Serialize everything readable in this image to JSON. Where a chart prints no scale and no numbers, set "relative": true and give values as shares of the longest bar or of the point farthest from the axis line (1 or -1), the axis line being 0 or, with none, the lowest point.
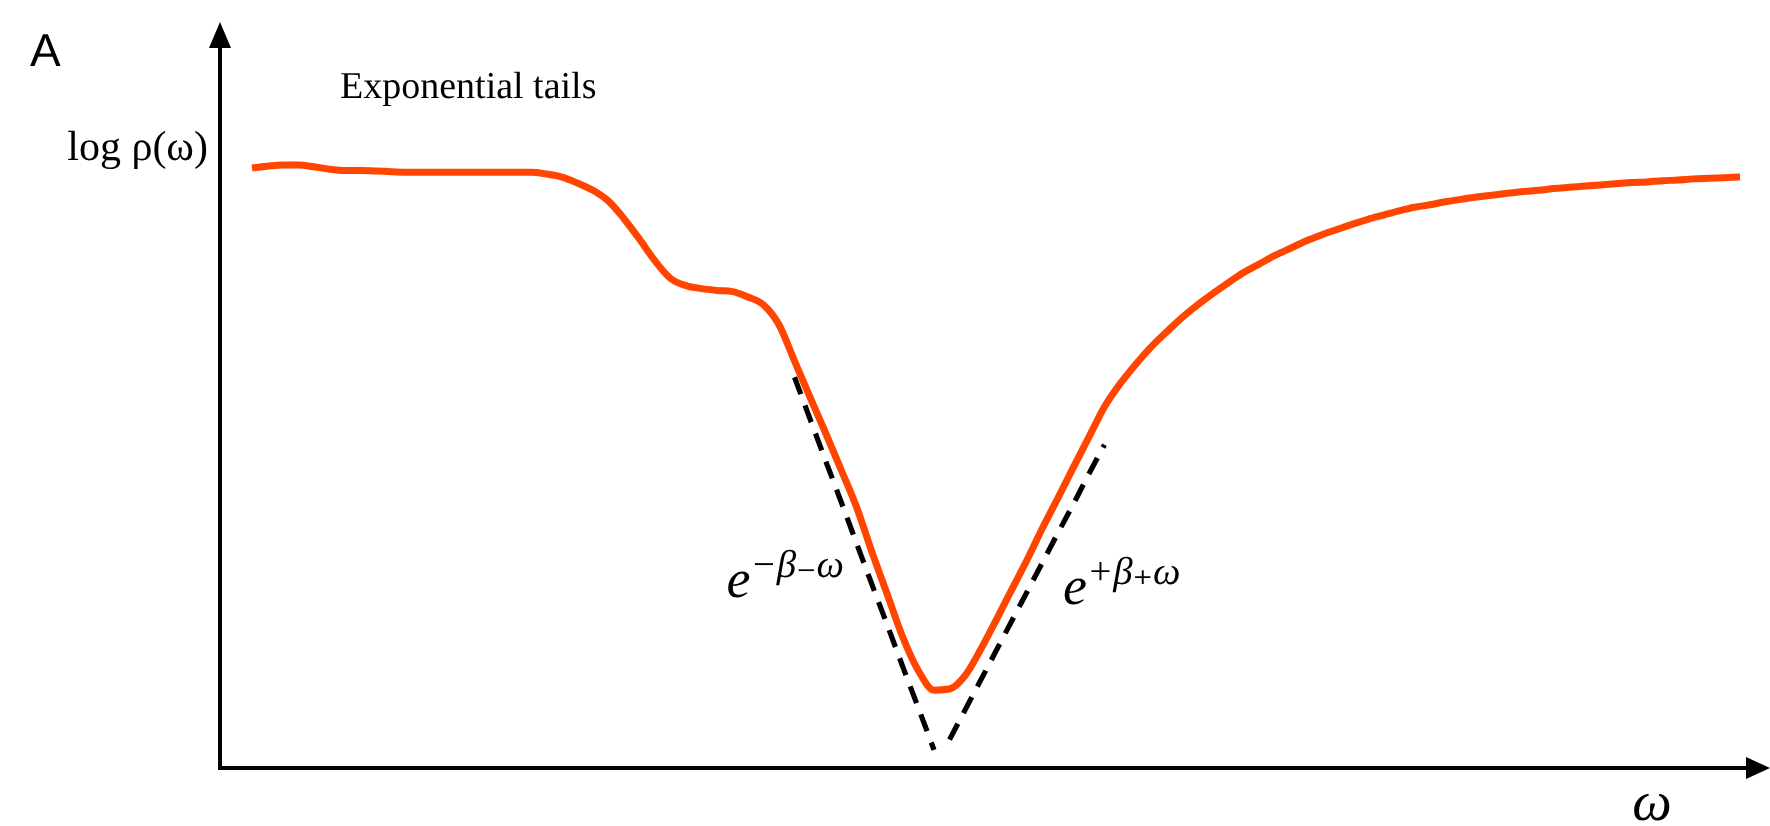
{
  "chart_data": {
    "type": "line",
    "title": "Exponential tails",
    "xlabel": "ω",
    "ylabel": "log ρ(ω)",
    "annotations": [
      "A"
    ],
    "relative": true,
    "categories": [
      null,
      null,
      null,
      null,
      null,
      null,
      null,
      null,
      null,
      null,
      null,
      null,
      null,
      null,
      null,
      null,
      null,
      null,
      null,
      null,
      null,
      null,
      null,
      null,
      null,
      null,
      null,
      null,
      null,
      null,
      null,
      null,
      null,
      null,
      null,
      null,
      null,
      null,
      null,
      null,
      null,
      null,
      null,
      null,
      null,
      null,
      null,
      null,
      null,
      null,
      null,
      null,
      null,
      null,
      null,
      null,
      null,
      null,
      null,
      null,
      null,
      null,
      null,
      null,
      null,
      null,
      null,
      null,
      null,
      null,
      null,
      null,
      null,
      null,
      null,
      null,
      null,
      null,
      null,
      null,
      null,
      null,
      null,
      null,
      null,
      null,
      null,
      null,
      null,
      null,
      null,
      null,
      null,
      null,
      null,
      null,
      null
    ],
    "series": [
      {
        "color": "#ff4500",
        "line_style": "solid",
        "values": [
          0.995,
          0.998,
          1,
          1,
          0.997,
          0.993,
          0.991,
          0.991,
          0.99,
          0.989,
          0.988,
          0.988,
          0.988,
          0.988,
          0.988,
          0.988,
          0.988,
          0.988,
          0.988,
          0.985,
          0.98,
          0.97,
          0.958,
          0.94,
          0.911,
          0.877,
          0.841,
          0.812,
          0.8,
          0.795,
          0.792,
          0.79,
          0.781,
          0.768,
          0.735,
          0.675,
          0.615,
          0.556,
          0.495,
          0.433,
          0.358,
          0.287,
          0.216,
          0.161,
          0.129,
          0.131,
          0.153,
          0.196,
          0.245,
          0.295,
          0.345,
          0.398,
          0.448,
          0.499,
          0.549,
          0.599,
          0.637,
          0.669,
          0.698,
          0.723,
          0.747,
          0.768,
          0.787,
          0.805,
          0.822,
          0.836,
          0.85,
          0.862,
          0.874,
          0.884,
          0.893,
          0.902,
          0.91,
          0.917,
          0.924,
          0.93,
          0.934,
          0.939,
          0.943,
          0.947,
          0.95,
          0.953,
          0.956,
          0.958,
          0.961,
          0.963,
          0.965,
          0.967,
          0.969,
          0.971,
          0.972,
          0.974,
          0.975,
          0.977,
          0.978,
          0.979,
          0.98
        ]
      },
      {
        "name": "e$^{−β₋ω}$",
        "color": "#000000",
        "line_style": "dashed",
        "values": [
          null,
          null,
          null,
          null,
          null,
          null,
          null,
          null,
          null,
          null,
          null,
          null,
          null,
          null,
          null,
          null,
          null,
          null,
          null,
          null,
          null,
          null,
          null,
          null,
          null,
          null,
          null,
          null,
          null,
          null,
          null,
          null,
          null,
          null,
          null,
          0.648,
          0.579,
          0.51,
          0.442,
          0.373,
          0.304,
          0.236,
          0.167,
          0.099,
          0.03,
          null,
          null,
          null,
          null,
          null,
          null,
          null,
          null,
          null,
          null,
          null,
          null,
          null,
          null,
          null,
          null,
          null,
          null,
          null,
          null,
          null,
          null,
          null,
          null,
          null,
          null,
          null,
          null,
          null,
          null,
          null,
          null,
          null,
          null,
          null,
          null,
          null,
          null,
          null,
          null,
          null,
          null,
          null,
          null,
          null,
          null,
          null,
          null,
          null,
          null,
          null,
          null
        ]
      },
      {
        "name": "e$^{+β₊ω}$",
        "color": "#000000",
        "line_style": "dashed",
        "values": [
          null,
          null,
          null,
          null,
          null,
          null,
          null,
          null,
          null,
          null,
          null,
          null,
          null,
          null,
          null,
          null,
          null,
          null,
          null,
          null,
          null,
          null,
          null,
          null,
          null,
          null,
          null,
          null,
          null,
          null,
          null,
          null,
          null,
          null,
          null,
          null,
          null,
          null,
          null,
          null,
          null,
          null,
          null,
          null,
          null,
          0.047,
          0.096,
          0.145,
          0.194,
          0.243,
          0.292,
          0.341,
          0.39,
          0.438,
          0.488,
          0.536,
          null,
          null,
          null,
          null,
          null,
          null,
          null,
          null,
          null,
          null,
          null,
          null,
          null,
          null,
          null,
          null,
          null,
          null,
          null,
          null,
          null,
          null,
          null,
          null,
          null,
          null,
          null,
          null,
          null,
          null,
          null,
          null,
          null,
          null,
          null,
          null,
          null,
          null,
          null,
          null,
          null
        ]
      }
    ]
  }
}
